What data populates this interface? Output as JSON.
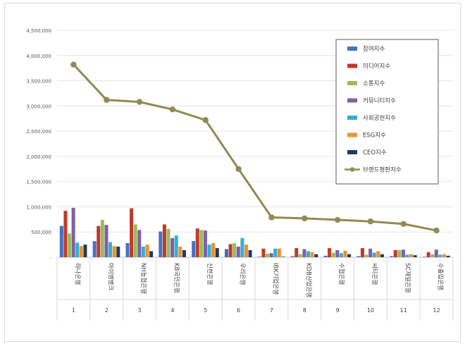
{
  "chart_data": {
    "type": "bar",
    "categories": [
      "하나은행",
      "아이엠뱅크",
      "NH농협은행",
      "KB국민은행",
      "신한은행",
      "우리은행",
      "IBK기업은행",
      "KDB산업은행",
      "수협은행",
      "씨티은행",
      "SC제일은행",
      "수출입은행"
    ],
    "ranks": [
      "1",
      "2",
      "3",
      "4",
      "5",
      "6",
      "7",
      "8",
      "9",
      "10",
      "11",
      "12"
    ],
    "ylim": [
      0,
      4500000
    ],
    "yticks": [
      0,
      500000,
      1000000,
      1500000,
      2000000,
      2500000,
      3000000,
      3500000,
      4000000,
      4500000
    ],
    "ytick_labels": [
      "-",
      "500,000",
      "1,000,000",
      "1,500,000",
      "2,000,000",
      "2,500,000",
      "3,000,000",
      "3,500,000",
      "4,000,000",
      "4,500,000"
    ],
    "grid": true,
    "legend_position": "top-right",
    "series": [
      {
        "name": "참여지수",
        "type": "bar",
        "color": "#4472c4",
        "values": [
          620000,
          320000,
          280000,
          510000,
          320000,
          160000,
          10000,
          20000,
          30000,
          20000,
          20000,
          10000
        ]
      },
      {
        "name": "미디어지수",
        "type": "bar",
        "color": "#c0392b",
        "values": [
          920000,
          620000,
          970000,
          650000,
          570000,
          260000,
          170000,
          180000,
          180000,
          180000,
          140000,
          100000
        ]
      },
      {
        "name": "소통지수",
        "type": "bar",
        "color": "#9bbb59",
        "values": [
          470000,
          740000,
          650000,
          560000,
          540000,
          280000,
          70000,
          60000,
          90000,
          50000,
          140000,
          60000
        ]
      },
      {
        "name": "커뮤니티지수",
        "type": "bar",
        "color": "#7f5fa9",
        "values": [
          980000,
          640000,
          540000,
          380000,
          530000,
          210000,
          80000,
          160000,
          140000,
          170000,
          150000,
          150000
        ]
      },
      {
        "name": "사회공헌지수",
        "type": "bar",
        "color": "#31b0d5",
        "values": [
          290000,
          300000,
          210000,
          430000,
          250000,
          380000,
          170000,
          120000,
          80000,
          90000,
          50000,
          50000
        ]
      },
      {
        "name": "ESG지수",
        "type": "bar",
        "color": "#f0902c",
        "values": [
          220000,
          220000,
          250000,
          210000,
          280000,
          250000,
          170000,
          100000,
          130000,
          120000,
          60000,
          60000
        ]
      },
      {
        "name": "CEO지수",
        "type": "bar",
        "color": "#1f3b63",
        "values": [
          250000,
          210000,
          120000,
          140000,
          180000,
          140000,
          10000,
          60000,
          60000,
          60000,
          40000,
          30000
        ]
      },
      {
        "name": "브랜드평판지수",
        "type": "line",
        "color": "#938953",
        "values": [
          3820000,
          3120000,
          3080000,
          2930000,
          2720000,
          1750000,
          790000,
          770000,
          740000,
          710000,
          660000,
          530000
        ]
      }
    ]
  }
}
